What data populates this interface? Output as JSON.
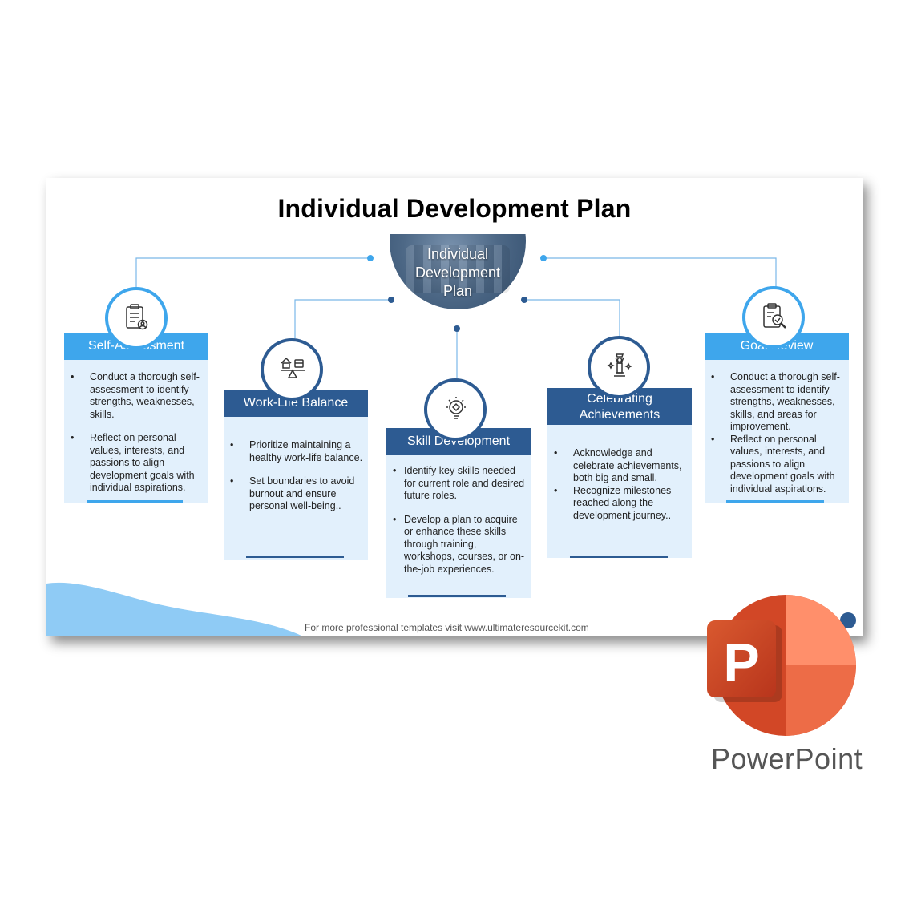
{
  "slide": {
    "title": "Individual Development Plan",
    "hub_lines": [
      "Individual",
      "Development",
      "Plan"
    ],
    "footer_prefix": "For more professional templates visit ",
    "footer_link": "www.ultimateresourcekit.com"
  },
  "cards": [
    {
      "title": "Self-Assessment",
      "icon": "clipboard-person-icon",
      "bullets": [
        "Conduct a thorough self-assessment to identify strengths, weaknesses, skills.",
        "Reflect on personal values, interests, and passions to align development goals with individual aspirations."
      ]
    },
    {
      "title": "Work-Life Balance",
      "icon": "balance-scale-icon",
      "bullets": [
        "Prioritize maintaining a healthy work-life balance.",
        "Set boundaries to avoid burnout and ensure personal well-being.."
      ]
    },
    {
      "title": "Skill Development",
      "icon": "lightbulb-icon",
      "bullets": [
        "Identify key skills needed for current role and desired future roles.",
        "Develop a plan to acquire or enhance these skills through training, workshops, courses, or on-the-job experiences."
      ]
    },
    {
      "title": "Celebrating Achievements",
      "icon": "trophy-person-icon",
      "bullets": [
        "Acknowledge and celebrate achievements, both big and small.",
        "Recognize milestones reached along the development journey.."
      ]
    },
    {
      "title": "Goal Review",
      "icon": "clipboard-search-icon",
      "bullets": [
        "Conduct a thorough self-assessment to identify strengths, weaknesses, skills, and areas for improvement.",
        "Reflect on personal values, interests, and passions to align development goals with individual aspirations."
      ]
    }
  ],
  "branding": {
    "app_name": "PowerPoint",
    "logo_letter": "P",
    "logo_icon": "powerpoint-logo-icon"
  },
  "colors": {
    "light_blue": "#3ea6ec",
    "dark_blue": "#2d5b92",
    "card_bg": "#e2f0fc",
    "ppt_orange": "#d24726"
  }
}
